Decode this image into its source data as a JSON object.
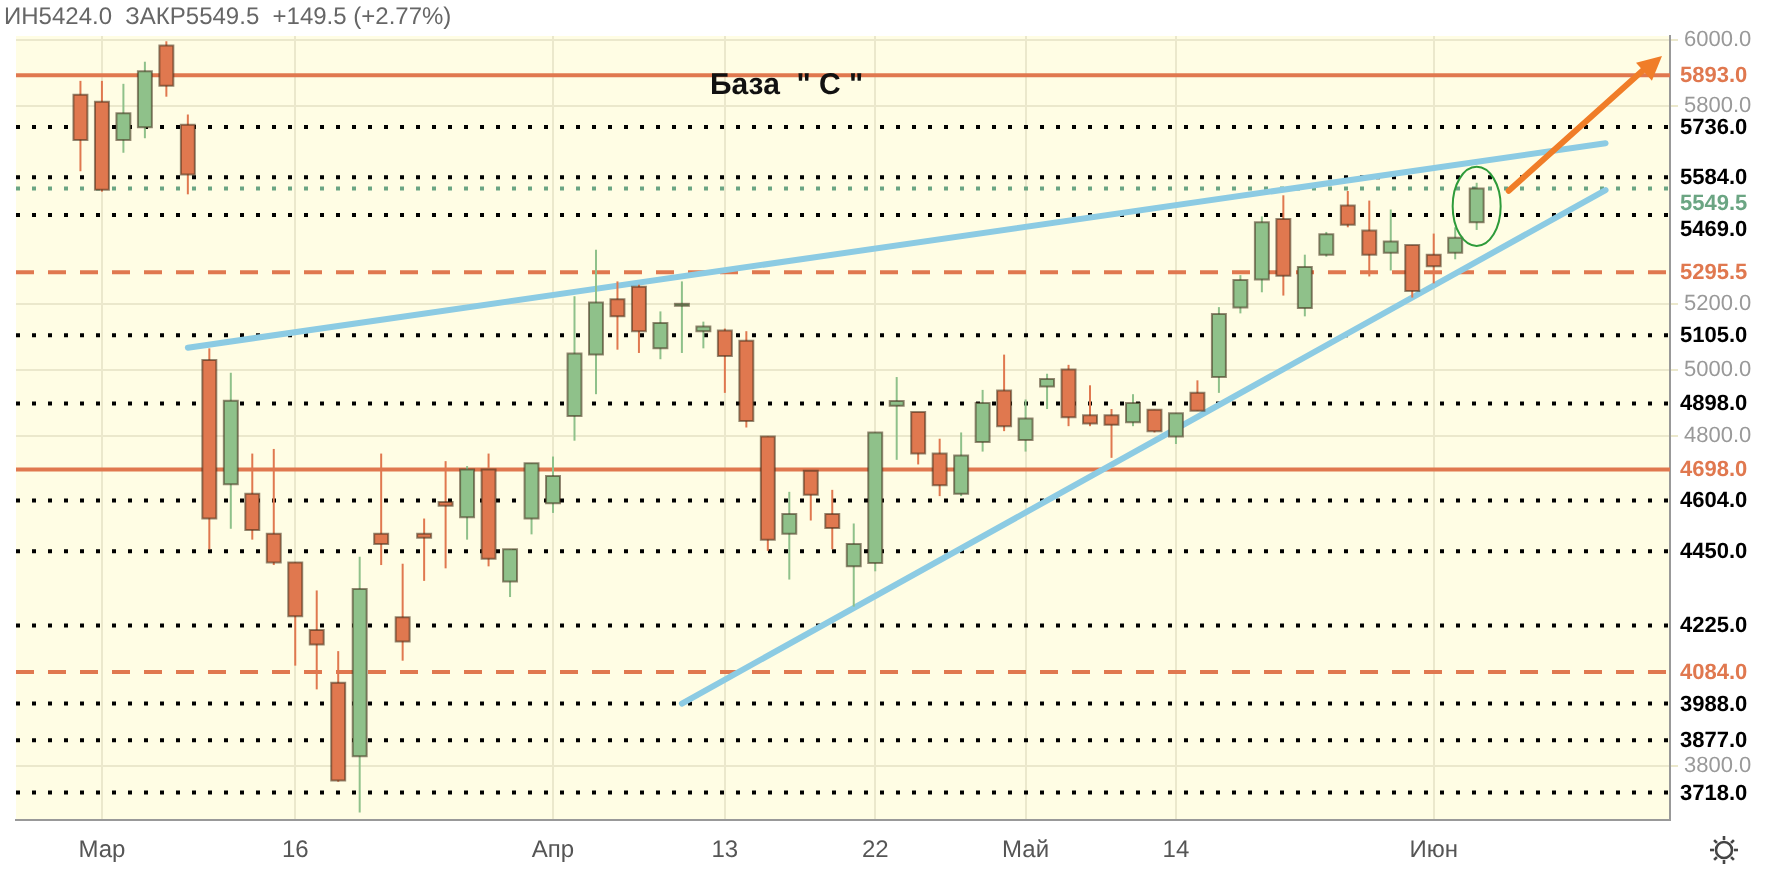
{
  "chart_data": {
    "type": "candlestick",
    "title": "База  \" С \"",
    "annotations": [
      "ИН5424.0  ЗАКР5549.5  +149.5 (+2.77%)"
    ],
    "categories": [
      null,
      null,
      null,
      null,
      "Мар",
      null,
      null,
      null,
      null,
      null,
      null,
      null,
      null,
      "16",
      null,
      null,
      null,
      null,
      null,
      null,
      null,
      null,
      null,
      null,
      null,
      "Апр",
      null,
      null,
      null,
      null,
      null,
      null,
      null,
      "13",
      null,
      null,
      null,
      null,
      null,
      null,
      "22",
      null,
      null,
      null,
      null,
      null,
      null,
      "Май",
      null,
      null,
      null,
      null,
      null,
      null,
      "14",
      null,
      null,
      null,
      null,
      null,
      null,
      null,
      null,
      null,
      null,
      null,
      "Июн",
      null,
      null,
      null,
      null,
      null,
      null,
      null,
      null,
      null,
      null,
      null
    ],
    "ohlc": [
      null,
      null,
      null,
      [
        5834,
        5876,
        5602,
        5697
      ],
      [
        5813,
        5876,
        5540,
        5546
      ],
      [
        5697,
        5867,
        5658,
        5778
      ],
      [
        5735,
        5934,
        5702,
        5905
      ],
      [
        5983,
        5996,
        5828,
        5861
      ],
      [
        5743,
        5774,
        5532,
        5592
      ],
      [
        5030,
        5065,
        4456,
        4549
      ],
      [
        4653,
        4991,
        4518,
        4906
      ],
      [
        4624,
        4746,
        4485,
        4514
      ],
      [
        4503,
        4760,
        4408,
        4416
      ],
      [
        4416,
        4416,
        4103,
        4253
      ],
      [
        4211,
        4331,
        4031,
        4167
      ],
      [
        4051,
        4147,
        3751,
        3755
      ],
      [
        3828,
        4433,
        3658,
        4335
      ],
      [
        4503,
        4746,
        4408,
        4472
      ],
      [
        4250,
        4412,
        4118,
        4176
      ],
      [
        4503,
        4549,
        4360,
        4491
      ],
      [
        4599,
        4723,
        4398,
        4588
      ],
      [
        4553,
        4708,
        4485,
        4698
      ],
      [
        4698,
        4746,
        4404,
        4427
      ],
      [
        4358,
        4456,
        4311,
        4456
      ],
      [
        4549,
        4717,
        4501,
        4717
      ],
      [
        4595,
        4737,
        4566,
        4678
      ],
      [
        4860,
        5223,
        4785,
        5049
      ],
      [
        5046,
        5364,
        4926,
        5204
      ],
      [
        5214,
        5268,
        5061,
        5162
      ],
      [
        5252,
        5258,
        5051,
        5117
      ],
      [
        5065,
        5177,
        5032,
        5142
      ],
      [
        5198,
        5268,
        5051,
        5200
      ],
      [
        5117,
        5146,
        5065,
        5131
      ],
      [
        5119,
        5125,
        4930,
        5042
      ],
      [
        5088,
        5117,
        4825,
        4845
      ],
      [
        4798,
        4798,
        4451,
        4485
      ],
      [
        4503,
        4630,
        4364,
        4563
      ],
      [
        4694,
        4694,
        4543,
        4621
      ],
      [
        4563,
        4636,
        4456,
        4520
      ],
      [
        4404,
        4534,
        4282,
        4472
      ],
      [
        4414,
        4810,
        4389,
        4810
      ],
      [
        4891,
        4978,
        4727,
        4905
      ],
      [
        4872,
        4872,
        4713,
        4746
      ],
      [
        4746,
        4791,
        4617,
        4650
      ],
      [
        4624,
        4810,
        4617,
        4740
      ],
      [
        4781,
        4939,
        4752,
        4899
      ],
      [
        4937,
        5046,
        4814,
        4829
      ],
      [
        4787,
        4910,
        4752,
        4852
      ],
      [
        4949,
        4988,
        4881,
        4972
      ],
      [
        5001,
        5015,
        4829,
        4856
      ],
      [
        4862,
        4953,
        4829,
        4837
      ],
      [
        4862,
        4881,
        4733,
        4833
      ],
      [
        4841,
        4926,
        4829,
        4899
      ],
      [
        4879,
        4879,
        4810,
        4814
      ],
      [
        4798,
        4868,
        4775,
        4868
      ],
      [
        4930,
        4968,
        4876,
        4876
      ],
      [
        4978,
        5190,
        4930,
        5169
      ],
      [
        5189,
        5287,
        5171,
        5272
      ],
      [
        5274,
        5465,
        5235,
        5447
      ],
      [
        5457,
        5529,
        5225,
        5285
      ],
      [
        5187,
        5349,
        5162,
        5312
      ],
      [
        5349,
        5418,
        5343,
        5411
      ],
      [
        5498,
        5542,
        5432,
        5440
      ],
      [
        5422,
        5513,
        5283,
        5349
      ],
      [
        5355,
        5486,
        5301,
        5389
      ],
      [
        5378,
        5378,
        5219,
        5239
      ],
      [
        5349,
        5413,
        5262,
        5314
      ],
      [
        5355,
        5432,
        5335,
        5400
      ],
      [
        5447,
        5567,
        5424,
        5549.5
      ],
      null,
      null,
      null,
      null,
      null,
      null,
      null,
      null,
      null
    ],
    "colors": [
      null,
      null,
      null,
      "#e0784f",
      "#e0784f",
      "#8fc18a",
      "#8fc18a",
      "#e0784f",
      "#e0784f",
      "#e0784f",
      "#8fc18a",
      "#e0784f",
      "#e0784f",
      "#e0784f",
      "#e0784f",
      "#e0784f",
      "#8fc18a",
      "#e0784f",
      "#e0784f",
      "#e0784f",
      "#e0784f",
      "#8fc18a",
      "#e0784f",
      "#8fc18a",
      "#8fc18a",
      "#8fc18a",
      "#8fc18a",
      "#8fc18a",
      "#e0784f",
      "#e0784f",
      "#8fc18a",
      "#8fc18a",
      "#8fc18a",
      "#e0784f",
      "#e0784f",
      "#e0784f",
      "#8fc18a",
      "#e0784f",
      "#e0784f",
      "#8fc18a",
      "#8fc18a",
      "#8fc18a",
      "#e0784f",
      "#e0784f",
      "#8fc18a",
      "#8fc18a",
      "#e0784f",
      "#8fc18a",
      "#8fc18a",
      "#e0784f",
      "#e0784f",
      "#e0784f",
      "#8fc18a",
      "#e0784f",
      "#8fc18a",
      "#e0784f",
      "#8fc18a",
      "#8fc18a",
      "#8fc18a",
      "#e0784f",
      "#8fc18a",
      "#8fc18a",
      "#e0784f",
      "#e0784f",
      "#8fc18a",
      "#e0784f",
      "#e0784f",
      "#8fc18a",
      "#8fc18a",
      null,
      null,
      null,
      null,
      null,
      null,
      null,
      null,
      null
    ],
    "series": [
      {
        "type": "line",
        "color": "#8ccbe3",
        "values": [
          null,
          null,
          null,
          null,
          null,
          null,
          null,
          null,
          5067,
          null,
          null,
          null,
          null,
          null,
          null,
          null,
          null,
          null,
          null,
          null,
          null,
          null,
          null,
          null,
          null,
          null,
          null,
          null,
          null,
          null,
          null,
          null,
          null,
          null,
          null,
          null,
          null,
          null,
          null,
          null,
          null,
          null,
          null,
          null,
          null,
          null,
          null,
          null,
          null,
          null,
          null,
          null,
          null,
          null,
          null,
          null,
          null,
          null,
          null,
          null,
          null,
          null,
          null,
          null,
          null,
          null,
          null,
          null,
          null,
          null,
          null,
          null,
          null,
          null,
          5687,
          null,
          null,
          null
        ]
      },
      {
        "type": "line",
        "color": "#8ccbe3",
        "values": [
          null,
          null,
          null,
          null,
          null,
          null,
          null,
          null,
          null,
          null,
          null,
          null,
          null,
          null,
          null,
          null,
          null,
          null,
          null,
          null,
          null,
          null,
          null,
          null,
          null,
          null,
          null,
          null,
          null,
          null,
          null,
          3988,
          null,
          null,
          null,
          null,
          null,
          null,
          null,
          null,
          null,
          null,
          null,
          null,
          null,
          null,
          null,
          null,
          null,
          null,
          null,
          null,
          null,
          null,
          null,
          null,
          null,
          null,
          null,
          null,
          null,
          null,
          null,
          null,
          null,
          null,
          null,
          null,
          null,
          null,
          null,
          null,
          null,
          null,
          5545,
          null,
          null,
          null
        ]
      }
    ],
    "marker": "none",
    "ylim": [
      3635,
      6012
    ],
    "yticks": [
      {
        "value": 6000,
        "label": "6000.0"
      },
      {
        "value": 5800,
        "label": "5800.0"
      },
      {
        "value": 5200,
        "label": "5200.0"
      },
      {
        "value": 5000,
        "label": "5000.0"
      },
      {
        "value": 4800,
        "label": "4800.0"
      },
      {
        "value": 3800,
        "label": "3800.0"
      }
    ],
    "grid": true,
    "ref_lines": [
      {
        "axis": "y",
        "value": 5893,
        "label": "5893.0",
        "color": "#e0784f",
        "line_style": "solid"
      },
      {
        "axis": "y",
        "value": 5736,
        "label": "5736.0",
        "color": "#000000",
        "line_style": "dotted"
      },
      {
        "axis": "y",
        "value": 5584,
        "label": "5584.0",
        "color": "#000000",
        "line_style": "dotted"
      },
      {
        "axis": "y",
        "value": 5549.5,
        "label": "5549.5",
        "color": "#6ba583",
        "line_style": "dotted"
      },
      {
        "axis": "y",
        "value": 5469,
        "label": "5469.0",
        "color": "#000000",
        "line_style": "dotted"
      },
      {
        "axis": "y",
        "value": 5295.5,
        "label": "5295.5",
        "color": "#e0784f",
        "line_style": "dashed"
      },
      {
        "axis": "y",
        "value": 5105,
        "label": "5105.0",
        "color": "#000000",
        "line_style": "dotted"
      },
      {
        "axis": "y",
        "value": 4898,
        "label": "4898.0",
        "color": "#000000",
        "line_style": "dotted"
      },
      {
        "axis": "y",
        "value": 4698,
        "label": "4698.0",
        "color": "#e0784f",
        "line_style": "solid"
      },
      {
        "axis": "y",
        "value": 4604,
        "label": "4604.0",
        "color": "#000000",
        "line_style": "dotted"
      },
      {
        "axis": "y",
        "value": 4450,
        "label": "4450.0",
        "color": "#000000",
        "line_style": "dotted"
      },
      {
        "axis": "y",
        "value": 4225,
        "label": "4225.0",
        "color": "#000000",
        "line_style": "dotted"
      },
      {
        "axis": "y",
        "value": 4084,
        "label": "4084.0",
        "color": "#e0784f",
        "line_style": "dashed"
      },
      {
        "axis": "y",
        "value": 3988,
        "label": "3988.0",
        "color": "#000000",
        "line_style": "dotted"
      },
      {
        "axis": "y",
        "value": 3877,
        "label": "3877.0",
        "color": "#000000",
        "line_style": "dotted"
      },
      {
        "axis": "y",
        "value": 3718,
        "label": "3718.0",
        "color": "#000000",
        "line_style": "dotted"
      }
    ]
  }
}
